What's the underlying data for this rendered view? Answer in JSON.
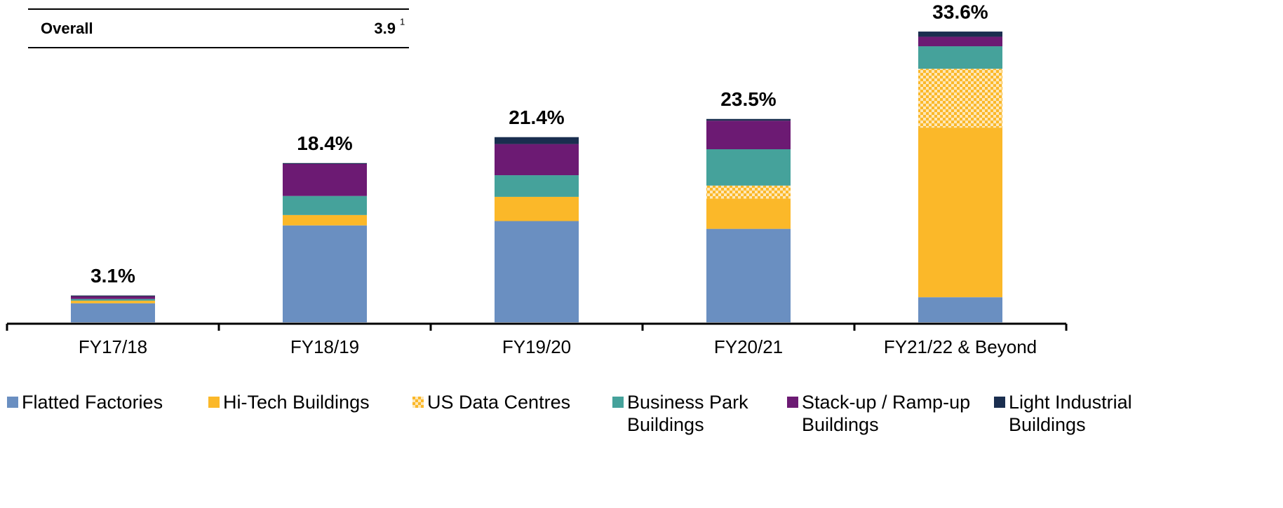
{
  "summary": {
    "label": "Overall",
    "value": "3.9",
    "footnote": "1"
  },
  "chart_data": {
    "type": "stacked_bar",
    "categories": [
      "FY17/18",
      "FY18/19",
      "FY19/20",
      "FY20/21",
      "FY21/22 & Beyond"
    ],
    "series": [
      {
        "name": "Flatted Factories",
        "color": "#6a8fc1",
        "values": [
          2.2,
          11.2,
          11.7,
          10.8,
          2.9
        ]
      },
      {
        "name": "Hi-Tech Buildings",
        "color": "#fbb829",
        "values": [
          0.3,
          1.2,
          2.8,
          3.5,
          19.6
        ]
      },
      {
        "name": "US Data Centres",
        "color": "#fbb829",
        "pattern": "checker",
        "values": [
          0,
          0,
          0,
          1.5,
          6.8
        ]
      },
      {
        "name": "Business Park Buildings",
        "color": "#45a29b",
        "values": [
          0.2,
          2.2,
          2.5,
          4.2,
          2.6
        ]
      },
      {
        "name": "Stack-up / Ramp-up Buildings",
        "color": "#6c1a73",
        "values": [
          0.3,
          3.7,
          3.6,
          3.3,
          1.1
        ]
      },
      {
        "name": "Light Industrial Buildings",
        "color": "#1a2e4f",
        "values": [
          0.1,
          0.1,
          0.8,
          0.2,
          0.6
        ]
      }
    ],
    "totals": [
      3.1,
      18.4,
      21.4,
      23.5,
      33.6
    ],
    "total_labels": [
      "3.1%",
      "18.4%",
      "21.4%",
      "23.5%",
      "33.6%"
    ],
    "legend": "bottom"
  }
}
